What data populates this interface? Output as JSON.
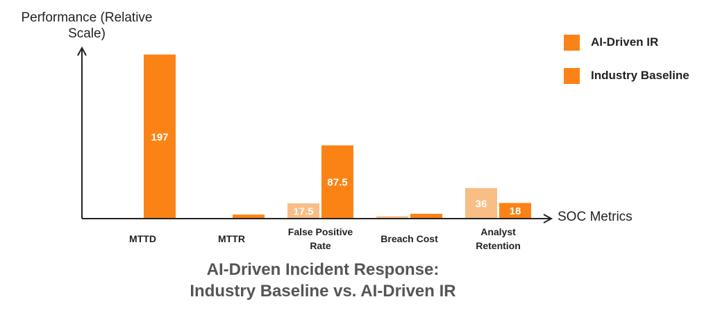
{
  "chart_data": {
    "type": "bar",
    "title": "AI-Driven Incident Response:",
    "subtitle": "Industry Baseline vs. AI-Driven IR",
    "ylabel": "Performance (Relative Scale)",
    "xlabel": "SOC Metrics",
    "ylim": [
      0,
      200
    ],
    "legend_position": "top-right",
    "categories": [
      "MTTD",
      "MTTR",
      "False Positive Rate",
      "Breach Cost",
      "Analyst Retention"
    ],
    "series": [
      {
        "name": "AI-Driven IR",
        "color": "#f9bd86",
        "values": [
          0,
          0,
          17.5,
          2,
          36
        ],
        "labels": [
          "",
          "",
          "17.5",
          "",
          "36"
        ]
      },
      {
        "name": "Industry Baseline",
        "color": "#fb8316",
        "values": [
          197,
          4,
          87.5,
          5,
          18
        ],
        "labels": [
          "197",
          "",
          "87.5",
          "",
          "18"
        ]
      }
    ],
    "legend_swatch_color": "#fb8316"
  }
}
